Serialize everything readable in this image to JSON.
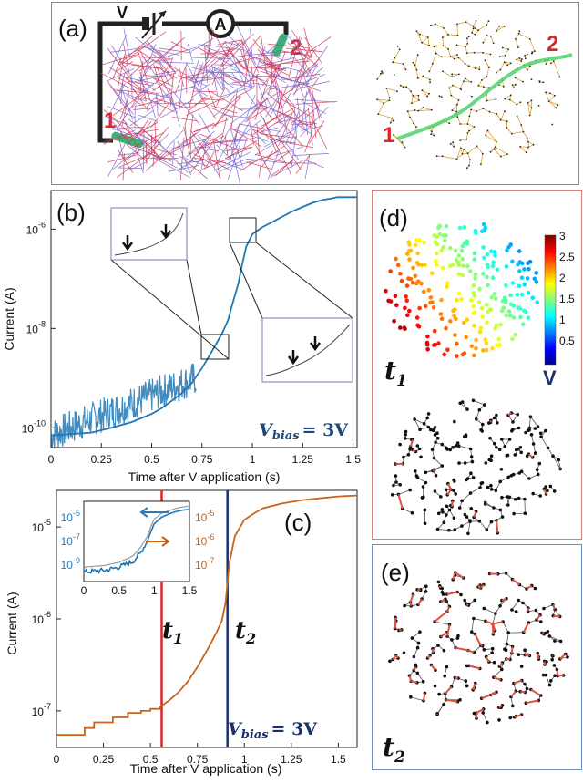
{
  "panel_a": {
    "label": "(a)",
    "source_label": "V",
    "ammeter_label": "A",
    "electrode_1": "1",
    "electrode_2": "2"
  },
  "panel_b": {
    "label": "(b)",
    "annotation": "V",
    "annotation_sub": "bias",
    "annotation_eq": "= 3V"
  },
  "panel_c": {
    "label": "(c)",
    "annotation": "V",
    "annotation_sub": "bias",
    "annotation_eq": "= 3V",
    "t1_label": "t",
    "t1_sub": "1",
    "t2_label": "t",
    "t2_sub": "2"
  },
  "panel_d": {
    "label": "(d)",
    "time_label": "t",
    "time_sub": "1",
    "colorbar_unit": "V",
    "colorbar_ticks": [
      "3",
      "2.5",
      "2",
      "1.5",
      "1",
      "0.5"
    ]
  },
  "panel_e": {
    "label": "(e)",
    "time_label": "t",
    "time_sub": "2"
  },
  "colors": {
    "current_blue": "#1f77b4",
    "current_orange": "#c8641c",
    "t1_line": "#d62728",
    "t2_line": "#1a2f6e",
    "path_green": "#4fd16a",
    "active_red": "#e05040"
  },
  "chart_data": [
    {
      "type": "line",
      "id": "b",
      "xlabel": "Time after V application (s)",
      "ylabel": "Current (A)",
      "yscale": "log",
      "xlim": [
        0,
        1.52
      ],
      "ylim": [
        4e-11,
        6e-06
      ],
      "xticks": [
        "0",
        "0.25",
        "0.5",
        "0.75",
        "1",
        "1.25",
        "1.5"
      ],
      "xtick_values": [
        0,
        0.25,
        0.5,
        0.75,
        1,
        1.25,
        1.5
      ],
      "yticks": [
        "10",
        "10",
        "10"
      ],
      "ytick_exps": [
        "-10",
        "-8",
        "-6"
      ],
      "ytick_values": [
        1e-10,
        1e-08,
        1e-06
      ],
      "series": [
        {
          "x": [
            0,
            0.1,
            0.2,
            0.3,
            0.4,
            0.5,
            0.55,
            0.6,
            0.65,
            0.7,
            0.75,
            0.8,
            0.85,
            0.88,
            0.9,
            0.93,
            0.95,
            0.97,
            1.0,
            1.05,
            1.1,
            1.15,
            1.2,
            1.25,
            1.3,
            1.35,
            1.4,
            1.42,
            1.45,
            1.52
          ],
          "y": [
            7e-11,
            7.5e-11,
            8e-11,
            1e-10,
            1.3e-10,
            1.9e-10,
            2.5e-10,
            3.5e-10,
            5e-10,
            8e-10,
            1.6e-09,
            3.5e-09,
            8e-09,
            1.5e-08,
            3e-08,
            8e-08,
            2e-07,
            4.5e-07,
            8e-07,
            1.1e-06,
            1.4e-06,
            1.8e-06,
            2.3e-06,
            2.8e-06,
            3.4e-06,
            3.9e-06,
            4.2e-06,
            4.4e-06,
            4.4e-06,
            4.4e-06
          ]
        }
      ]
    },
    {
      "type": "line",
      "id": "c",
      "xlabel": "Time after V application (s)",
      "ylabel": "Current (A)",
      "yscale": "log",
      "xlim": [
        0,
        1.6
      ],
      "ylim": [
        4e-08,
        2.5e-05
      ],
      "xticks": [
        "0",
        "0.25",
        "0.5",
        "0.75",
        "1",
        "1.25",
        "1.5"
      ],
      "xtick_values": [
        0,
        0.25,
        0.5,
        0.75,
        1,
        1.25,
        1.5
      ],
      "yticks": [
        "10",
        "10",
        "10"
      ],
      "ytick_exps": [
        "-7",
        "-6",
        "-5"
      ],
      "ytick_values": [
        1e-07,
        1e-06,
        1e-05
      ],
      "markers": [
        {
          "x": 0.56
        },
        {
          "x": 0.91
        }
      ],
      "series": [
        {
          "x": [
            0,
            0.15,
            0.15,
            0.2,
            0.2,
            0.3,
            0.3,
            0.38,
            0.38,
            0.45,
            0.45,
            0.5,
            0.5,
            0.55,
            0.55,
            0.6,
            0.65,
            0.7,
            0.75,
            0.8,
            0.85,
            0.88,
            0.9,
            0.92,
            0.95,
            1.0,
            1.05,
            1.1,
            1.2,
            1.3,
            1.4,
            1.5,
            1.6
          ],
          "y": [
            5.5e-08,
            5.5e-08,
            6.5e-08,
            6.5e-08,
            7.5e-08,
            7.5e-08,
            8.5e-08,
            8.5e-08,
            9.5e-08,
            9.5e-08,
            1e-07,
            1e-07,
            1.05e-07,
            1.05e-07,
            1.1e-07,
            1.3e-07,
            1.6e-07,
            2.1e-07,
            3e-07,
            4.5e-07,
            7e-07,
            9.5e-07,
            1.5e-06,
            4e-06,
            8e-06,
            1.2e-05,
            1.4e-05,
            1.6e-05,
            1.8e-05,
            1.95e-05,
            2.05e-05,
            2.15e-05,
            2.2e-05
          ]
        }
      ]
    },
    {
      "type": "line",
      "id": "c-inset",
      "xlim": [
        0,
        1.5
      ],
      "xticks": [
        "0",
        "0.5",
        "1",
        "1.5"
      ],
      "xtick_values": [
        0,
        0.5,
        1,
        1.5
      ],
      "left_yticks": [
        "10",
        "10",
        "10"
      ],
      "left_ytick_exps": [
        "-5",
        "-7",
        "-9"
      ],
      "right_yticks": [
        "10",
        "10",
        "10"
      ],
      "right_ytick_exps": [
        "-5",
        "-6",
        "-7"
      ],
      "series": [
        {
          "axis": "left",
          "x": [
            0,
            0.3,
            0.5,
            0.7,
            0.8,
            0.9,
            0.95,
            1.0,
            1.1,
            1.2,
            1.3,
            1.4,
            1.5
          ],
          "y": [
            0.12,
            0.14,
            0.18,
            0.25,
            0.35,
            0.5,
            0.62,
            0.72,
            0.8,
            0.84,
            0.87,
            0.89,
            0.9
          ]
        },
        {
          "axis": "right",
          "x": [
            0,
            0.3,
            0.5,
            0.7,
            0.8,
            0.9,
            0.95,
            1.0,
            1.1,
            1.2,
            1.3,
            1.4,
            1.5
          ],
          "y": [
            0.18,
            0.2,
            0.24,
            0.32,
            0.42,
            0.56,
            0.68,
            0.78,
            0.85,
            0.88,
            0.91,
            0.93,
            0.94
          ]
        }
      ]
    }
  ]
}
